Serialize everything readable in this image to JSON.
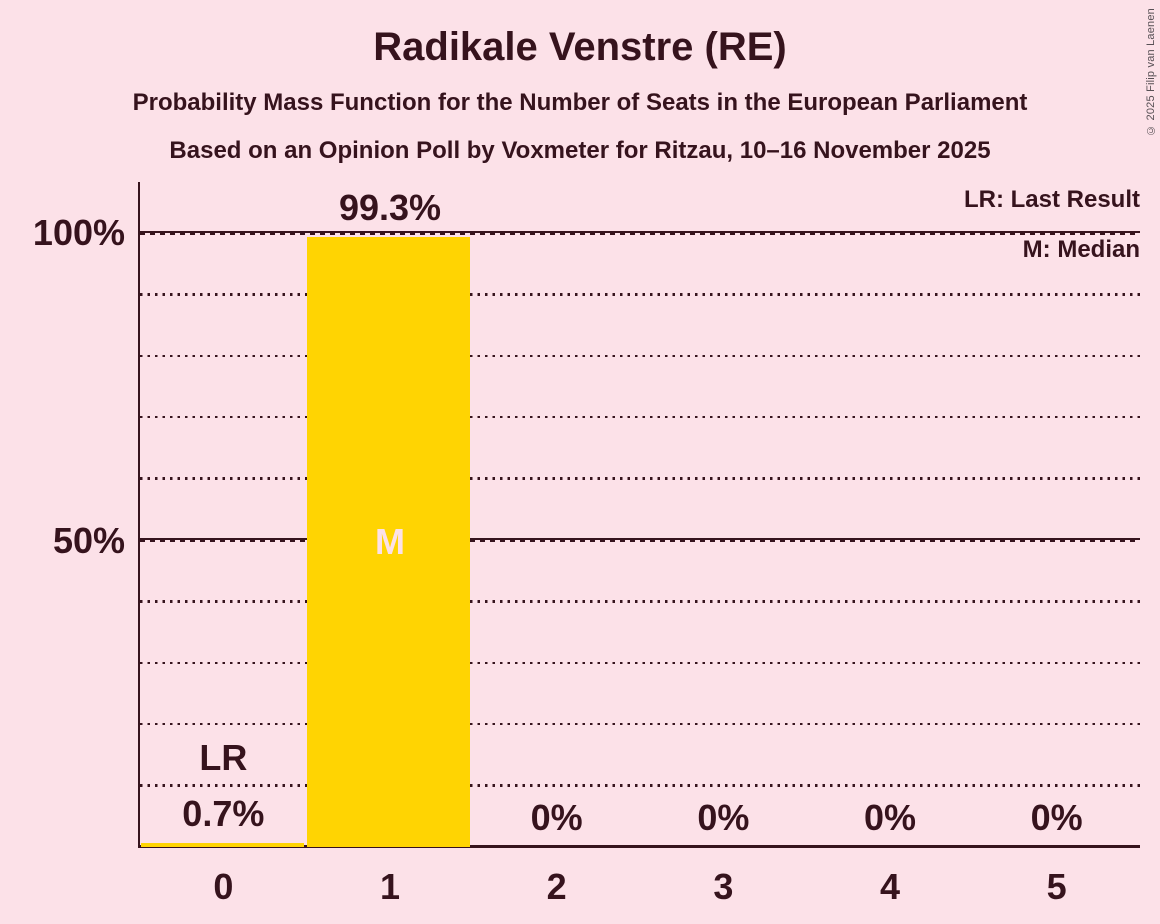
{
  "header": {
    "title": "Radikale Venstre (RE)",
    "subtitle": "Probability Mass Function for the Number of Seats in the European Parliament",
    "source_line": "Based on an Opinion Poll by Voxmeter for Ritzau, 10–16 November 2025"
  },
  "copyright": "© 2025 Filip van Laenen",
  "legend": {
    "last_result": "LR: Last Result",
    "median": "M: Median"
  },
  "y_axis": {
    "label_100": "100%",
    "label_50": "50%"
  },
  "chart_data": {
    "type": "bar",
    "title": "Radikale Venstre (RE)",
    "categories": [
      "0",
      "1",
      "2",
      "3",
      "4",
      "5"
    ],
    "values": [
      0.7,
      99.3,
      0,
      0,
      0,
      0
    ],
    "value_labels": [
      "0.7%",
      "99.3%",
      "0%",
      "0%",
      "0%",
      "0%"
    ],
    "xlabel": "",
    "ylabel": "",
    "ylim": [
      0,
      100
    ],
    "y_tick_labels": [
      "100%",
      "50%"
    ],
    "y_gridlines_dotted_pct": [
      10,
      20,
      30,
      40,
      60,
      70,
      80,
      90
    ],
    "y_gridlines_solid_pct": [
      50,
      100
    ],
    "grid": "horizontal",
    "legend_position": "top-right",
    "annotations": {
      "last_result": {
        "category_index": 0,
        "label": "LR"
      },
      "median": {
        "category_index": 1,
        "label": "M"
      }
    },
    "colors": {
      "background": "#fce1e8",
      "bar": "#ffd402",
      "text": "#36131d",
      "median_label": "#fce1e8"
    }
  }
}
